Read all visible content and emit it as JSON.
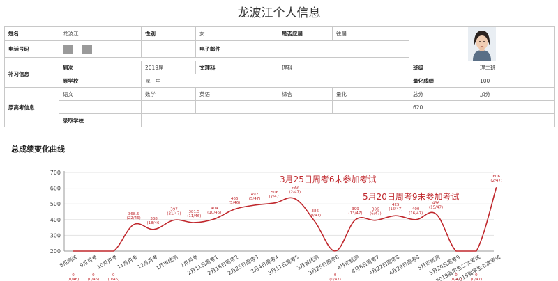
{
  "page_title": "龙波江个人信息",
  "profile": {
    "name_label": "姓名",
    "name_value": "龙波江",
    "gender_label": "性别",
    "gender_value": "女",
    "repeat_label": "是否应届",
    "repeat_value": "往届",
    "phone_label": "电话号码",
    "email_label": "电子邮件",
    "photo_icon": "student-photo"
  },
  "supplement": {
    "section_label": "补习信息",
    "class_year_label": "届次",
    "class_year_value": "2019届",
    "track_label": "文理科",
    "track_value": "理科",
    "class_label": "班级",
    "class_value": "理二班",
    "school_label": "原学校",
    "school_value": "昆三中",
    "quant_label": "量化成绩",
    "quant_value": "100"
  },
  "prior_exam": {
    "section_label": "原高考信息",
    "headers": [
      "语文",
      "数学",
      "英语",
      "综合",
      "量化",
      "总分",
      "加分"
    ],
    "values": [
      "",
      "",
      "",
      "",
      "",
      "620",
      ""
    ],
    "admitted_label": "录取学校",
    "admitted_value": ""
  },
  "chart_section_title": "总成绩变化曲线",
  "chart_data": {
    "type": "line",
    "ylim": [
      200,
      700
    ],
    "yticks": [
      "200",
      "300",
      "400",
      "500",
      "600",
      "700"
    ],
    "grid": true,
    "color": "#c0282d",
    "categories": [
      "8月测试",
      "9月月考",
      "10月月考",
      "11月月考",
      "12月月考",
      "1月市统测",
      "1月月考",
      "2月11日周考1",
      "2月18日周考2",
      "2月25日周考3",
      "3月4日周考4",
      "3月11日周考5",
      "3月省统测",
      "3月25日周考6",
      "4月市统测",
      "4月8日周考7",
      "4月22日周考8",
      "4月29日周考8",
      "5月市统测",
      "5月20日周考9",
      "2019届学生二次考试",
      "2019届学生七次考试"
    ],
    "values": [
      0,
      0,
      0,
      368.5,
      338,
      397,
      381.5,
      404,
      466,
      492,
      506,
      533,
      386,
      0,
      399,
      396,
      425,
      400,
      436,
      0,
      0,
      606
    ],
    "point_labels": [
      "0",
      "0",
      "0",
      "368.5",
      "338",
      "397",
      "381.5",
      "404",
      "466",
      "492",
      "506",
      "533",
      "386",
      "0",
      "399",
      "396",
      "425",
      "400",
      "436",
      "0",
      "0",
      "606"
    ],
    "rank_labels": [
      "(0/46)",
      "(0/46)",
      "(0/46)",
      "(22/46)",
      "(18/46)",
      "(21/47)",
      "(11/46)",
      "(10/46)",
      "(5/46)",
      "(5/47)",
      "(7/47)",
      "(2/47)",
      "(0/47)",
      "(0/47)",
      "(13/47)",
      "(6/47)",
      "(15/47)",
      "(16/47)",
      "(15/47)",
      "(0/47)",
      "(0/47)",
      "(2/47)"
    ],
    "annotations": [
      {
        "text": "3月25日周考6未参加考试"
      },
      {
        "text": "5月20日周考9未参加考试"
      }
    ]
  }
}
